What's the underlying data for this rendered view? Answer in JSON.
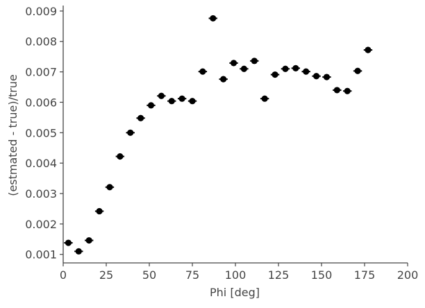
{
  "chart_data": {
    "type": "scatter",
    "title": "",
    "xlabel": "Phi [deg]",
    "ylabel": "(estmated - true)/true",
    "xlim": [
      0,
      200
    ],
    "ylim": [
      0.00072,
      0.00918
    ],
    "xticks": [
      0,
      25,
      50,
      75,
      100,
      125,
      150,
      175,
      200
    ],
    "xtick_labels": [
      "0",
      "25",
      "50",
      "75",
      "100",
      "125",
      "150",
      "175",
      "200"
    ],
    "yticks": [
      0.001,
      0.002,
      0.003,
      0.004,
      0.005,
      0.006,
      0.007,
      0.008,
      0.009
    ],
    "ytick_labels": [
      "0.001",
      "0.002",
      "0.003",
      "0.004",
      "0.005",
      "0.006",
      "0.007",
      "0.008",
      "0.009"
    ],
    "grid": false,
    "marker_color": "#000000",
    "axis_color": "#444444",
    "x_error_half_width": 2.5,
    "series": [
      {
        "x": [
          3,
          9,
          15,
          21,
          27,
          33,
          39,
          45,
          51,
          57,
          63,
          69,
          75,
          81,
          87,
          93,
          99,
          105,
          111,
          117,
          123,
          129,
          135,
          141,
          147,
          153,
          159,
          165,
          171,
          177
        ],
        "y": [
          0.00138,
          0.0011,
          0.00146,
          0.00242,
          0.00321,
          0.00422,
          0.005,
          0.00548,
          0.0059,
          0.00621,
          0.00604,
          0.00612,
          0.00604,
          0.00701,
          0.00876,
          0.00676,
          0.00729,
          0.0071,
          0.00736,
          0.00612,
          0.00691,
          0.0071,
          0.00712,
          0.00701,
          0.00686,
          0.00683,
          0.0064,
          0.00637,
          0.00703,
          0.00772
        ]
      }
    ]
  }
}
